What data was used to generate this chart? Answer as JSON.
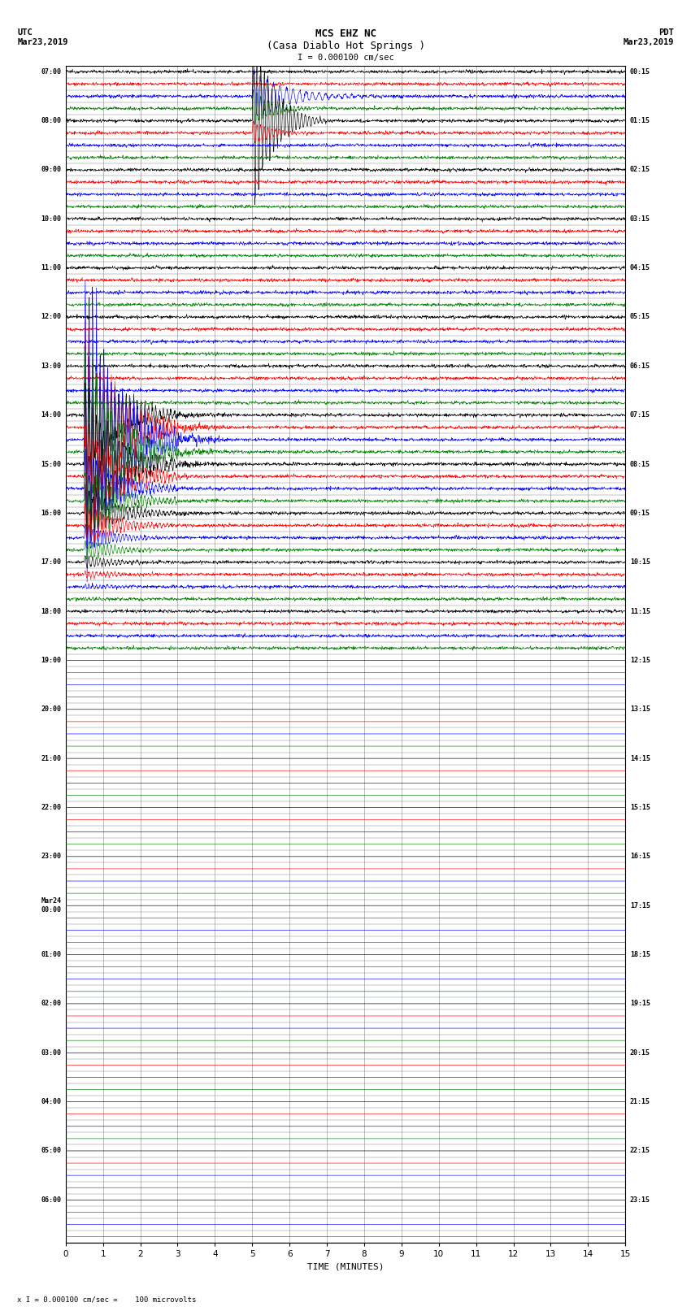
{
  "title_line1": "MCS EHZ NC",
  "title_line2": "(Casa Diablo Hot Springs )",
  "scale_label": "I = 0.000100 cm/sec",
  "footer_label": "x I = 0.000100 cm/sec =    100 microvolts",
  "xlabel": "TIME (MINUTES)",
  "x_ticks": [
    0,
    1,
    2,
    3,
    4,
    5,
    6,
    7,
    8,
    9,
    10,
    11,
    12,
    13,
    14,
    15
  ],
  "utc_times": [
    "07:00",
    "",
    "",
    "",
    "08:00",
    "",
    "",
    "",
    "09:00",
    "",
    "",
    "",
    "10:00",
    "",
    "",
    "",
    "11:00",
    "",
    "",
    "",
    "12:00",
    "",
    "",
    "",
    "13:00",
    "",
    "",
    "",
    "14:00",
    "",
    "",
    "",
    "15:00",
    "",
    "",
    "",
    "16:00",
    "",
    "",
    "",
    "17:00",
    "",
    "",
    "",
    "18:00",
    "",
    "",
    "",
    "19:00",
    "",
    "",
    "",
    "20:00",
    "",
    "",
    "",
    "21:00",
    "",
    "",
    "",
    "22:00",
    "",
    "",
    "",
    "23:00",
    "",
    "",
    "",
    "Mar24\n00:00",
    "",
    "",
    "",
    "01:00",
    "",
    "",
    "",
    "02:00",
    "",
    "",
    "",
    "03:00",
    "",
    "",
    "",
    "04:00",
    "",
    "",
    "",
    "05:00",
    "",
    "",
    "",
    "06:00",
    "",
    "",
    ""
  ],
  "pdt_times": [
    "00:15",
    "",
    "",
    "",
    "01:15",
    "",
    "",
    "",
    "02:15",
    "",
    "",
    "",
    "03:15",
    "",
    "",
    "",
    "04:15",
    "",
    "",
    "",
    "05:15",
    "",
    "",
    "",
    "06:15",
    "",
    "",
    "",
    "07:15",
    "",
    "",
    "",
    "08:15",
    "",
    "",
    "",
    "09:15",
    "",
    "",
    "",
    "10:15",
    "",
    "",
    "",
    "11:15",
    "",
    "",
    "",
    "12:15",
    "",
    "",
    "",
    "13:15",
    "",
    "",
    "",
    "14:15",
    "",
    "",
    "",
    "15:15",
    "",
    "",
    "",
    "16:15",
    "",
    "",
    "",
    "17:15",
    "",
    "",
    "",
    "18:15",
    "",
    "",
    "",
    "19:15",
    "",
    "",
    "",
    "20:15",
    "",
    "",
    "",
    "21:15",
    "",
    "",
    "",
    "22:15",
    "",
    "",
    "",
    "23:15",
    "",
    "",
    ""
  ],
  "n_rows": 96,
  "active_rows": 48,
  "colors": [
    "black",
    "red",
    "blue",
    "green"
  ],
  "noise_amplitude": 0.06,
  "background_color": "white",
  "grid_color": "#888888",
  "fig_width": 8.5,
  "fig_height": 16.13,
  "dpi": 100,
  "eq1_rows": [
    2,
    3,
    4,
    5
  ],
  "eq1_col": 5.0,
  "eq1_amps": [
    2.0,
    1.5,
    8.0,
    1.0
  ],
  "eq2_rows": [
    28,
    29,
    30,
    31,
    32,
    33,
    34,
    35,
    36,
    37,
    38,
    39,
    40,
    41,
    42,
    43
  ],
  "eq2_col": 0.5,
  "eq2_amps": [
    5.0,
    8.0,
    12.0,
    8.0,
    6.0,
    4.0,
    3.0,
    2.5,
    2.0,
    1.5,
    1.0,
    0.8,
    0.5,
    0.3,
    0.2,
    0.1
  ],
  "green_spike_row": 33,
  "green_spike_col": 13.0,
  "green_spike_amp": 1.5
}
